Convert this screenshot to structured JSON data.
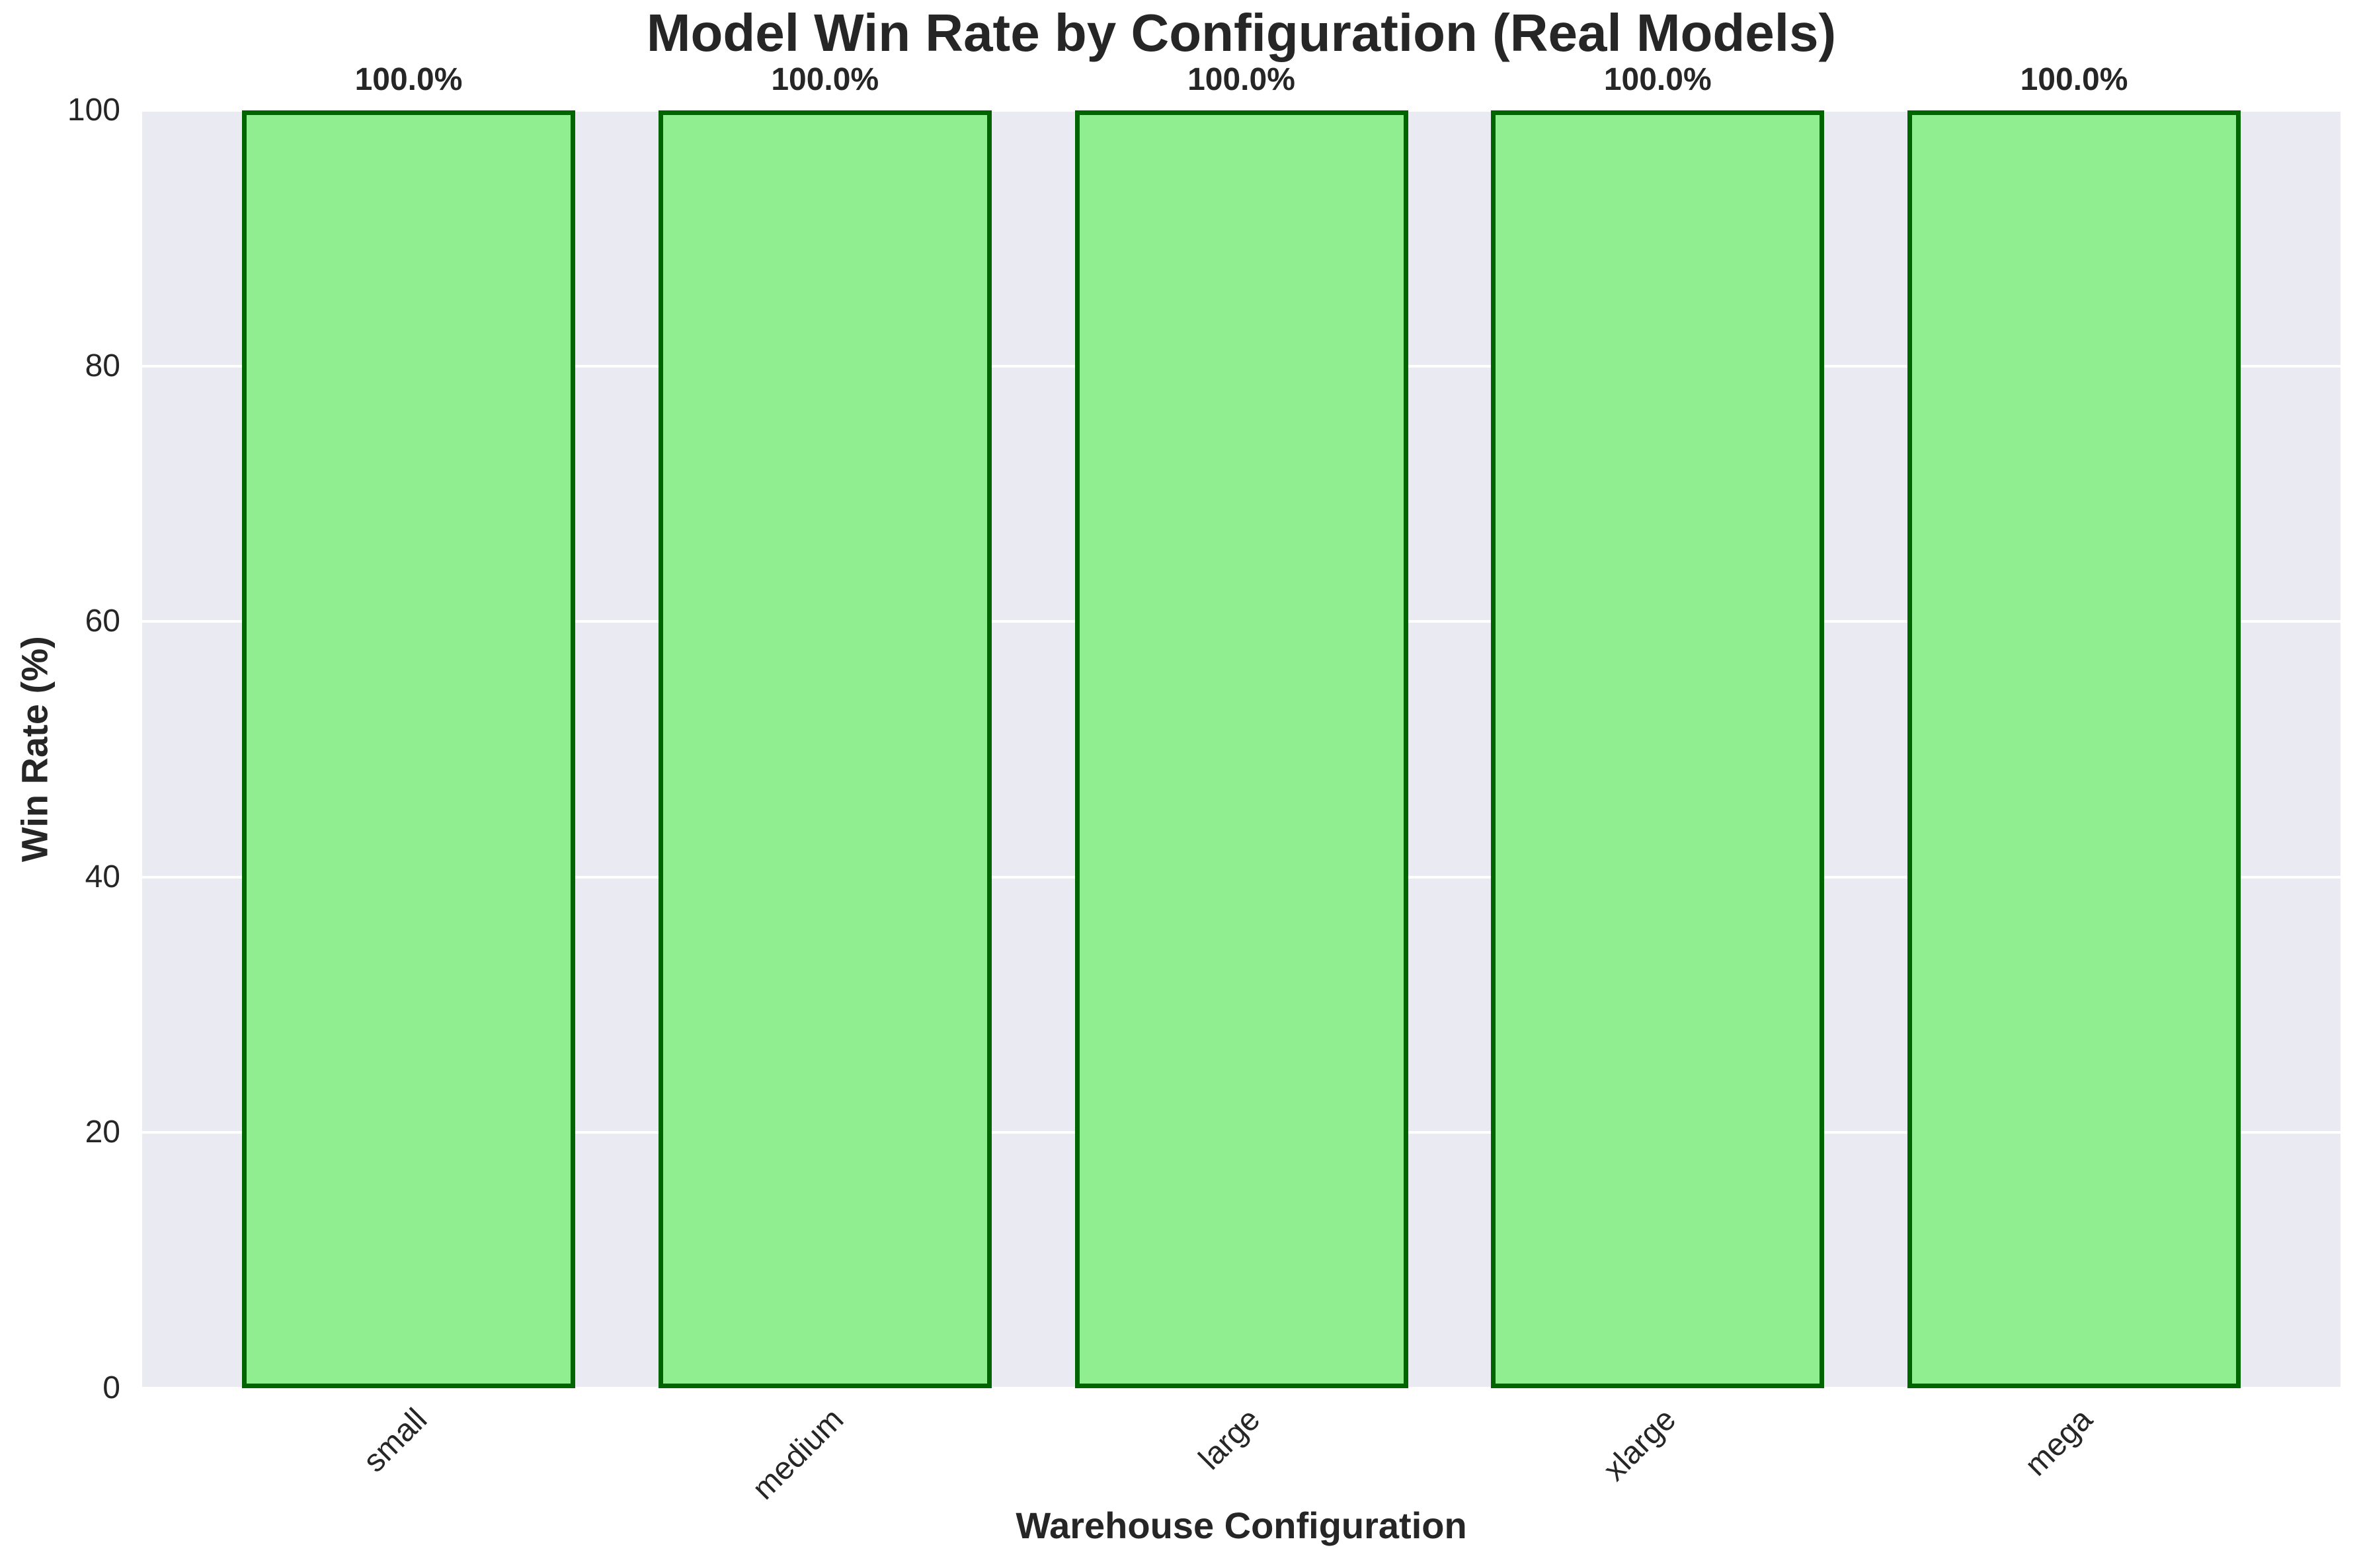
{
  "chart_data": {
    "type": "bar",
    "title": "Model Win Rate by Configuration (Real Models)",
    "xlabel": "Warehouse Configuration",
    "ylabel": "Win Rate (%)",
    "categories": [
      "small",
      "medium",
      "large",
      "xlarge",
      "mega"
    ],
    "values": [
      100.0,
      100.0,
      100.0,
      100.0,
      100.0
    ],
    "value_labels": [
      "100.0%",
      "100.0%",
      "100.0%",
      "100.0%",
      "100.0%"
    ],
    "ylim": [
      0,
      100
    ],
    "yticks": [
      "0",
      "20",
      "40",
      "60",
      "80",
      "100"
    ],
    "grid": "horizontal white gridlines on lavender panel",
    "legend_position": "none",
    "colors": {
      "bar_fill": "#90EE90",
      "bar_edge": "#006400",
      "plot_background": "#EAEAF2",
      "gridline": "#FFFFFF",
      "text": "#262626",
      "figure_background": "#FFFFFF"
    }
  }
}
